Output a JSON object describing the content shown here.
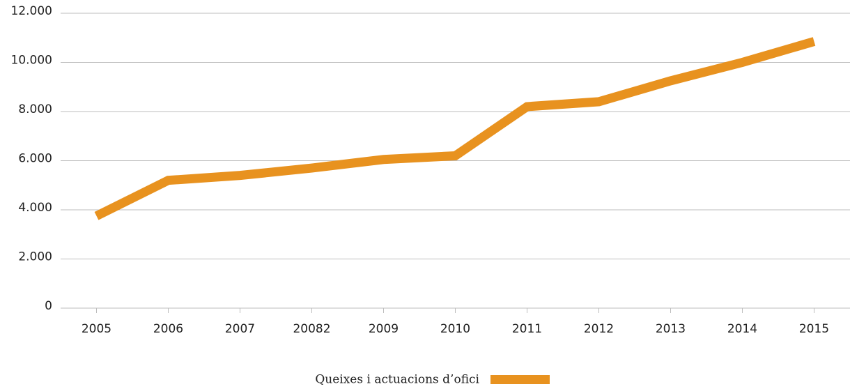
{
  "chart_data": {
    "type": "line",
    "categories": [
      "2005",
      "2006",
      "2007",
      "20082",
      "2009",
      "2010",
      "2011",
      "2012",
      "2013",
      "2014",
      "2015"
    ],
    "series": [
      {
        "name": "Queixes i actuacions d’ofici",
        "color": "#e8921f",
        "values": [
          3750,
          5200,
          5400,
          5700,
          6050,
          6200,
          8200,
          8400,
          9250,
          10000,
          10850
        ]
      }
    ],
    "ylim": [
      0,
      12000
    ],
    "yticks": [
      0,
      {
        "value": 2000,
        "label": "2.000"
      },
      {
        "value": 4000,
        "label": "4.000"
      },
      {
        "value": 6000,
        "label": "6.000"
      },
      {
        "value": 8000,
        "label": "8.000"
      },
      {
        "value": 10000,
        "label": "10.000"
      },
      {
        "value": 12000,
        "label": "12.000"
      }
    ],
    "grid": true,
    "legend": "bottom"
  }
}
